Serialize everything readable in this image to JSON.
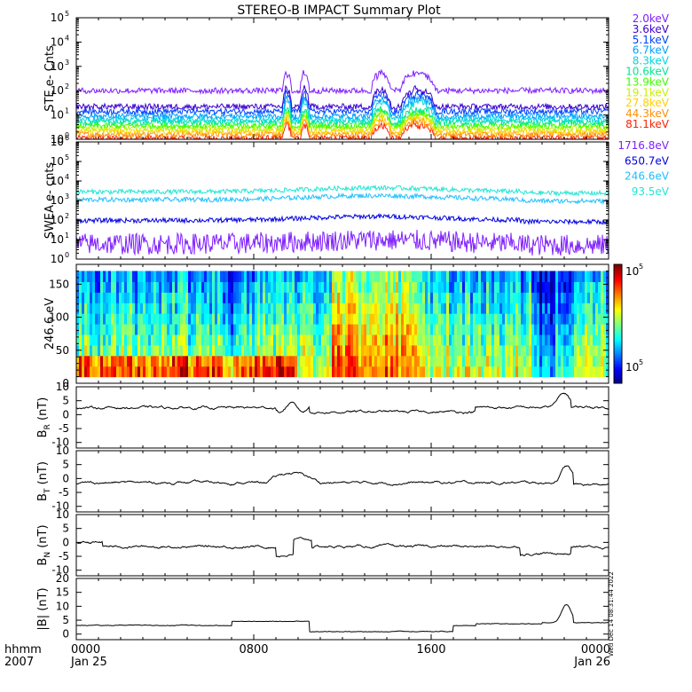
{
  "title": "STEREO-B IMPACT Summary Plot",
  "time_axis": {
    "row1_label": "hhmm",
    "row2_label": "2007",
    "ticks": [
      {
        "hour": 0,
        "label": "0000",
        "date": "Jan 25"
      },
      {
        "hour": 8,
        "label": "0800",
        "date": ""
      },
      {
        "hour": 16,
        "label": "1600",
        "date": ""
      },
      {
        "hour": 24,
        "label": "0000",
        "date": "Jan 26"
      }
    ],
    "range_hours": [
      0,
      24
    ]
  },
  "side_label": "Wed Dec 14 08:31:44 2022",
  "colors": {
    "purple": "#7f1fff",
    "blue": "#0000e0",
    "cyan": "#1fbfff",
    "teal": "#22e6d4",
    "black": "#000000"
  },
  "chart_data": [
    {
      "type": "line",
      "name": "ste",
      "ylabel": "STE e- Cnts",
      "yscale": "log",
      "ylim_exp": [
        0,
        5
      ],
      "ytick_exponents": [
        0,
        1,
        2,
        3,
        4,
        5
      ],
      "legend_position": "right",
      "series": [
        {
          "name": "2.0keV",
          "color": "#7f1fff",
          "base": 100
        },
        {
          "name": "3.6keV",
          "color": "#3a00d0",
          "base": 22
        },
        {
          "name": "5.1keV",
          "color": "#0040ff",
          "base": 14
        },
        {
          "name": "6.7keV",
          "color": "#00a0ff",
          "base": 9
        },
        {
          "name": "8.3keV",
          "color": "#00d8e0",
          "base": 6.5
        },
        {
          "name": "10.6keV",
          "color": "#00e890",
          "base": 5
        },
        {
          "name": "13.9keV",
          "color": "#40ff00",
          "base": 3.6
        },
        {
          "name": "19.1keV",
          "color": "#c8f000",
          "base": 2.8
        },
        {
          "name": "27.8keV",
          "color": "#ffd000",
          "base": 2.1
        },
        {
          "name": "44.3keV",
          "color": "#ff9000",
          "base": 1.6
        },
        {
          "name": "81.1keV",
          "color": "#ff2000",
          "base": 1.1
        }
      ],
      "enhancements_hours": [
        [
          9.3,
          9.7
        ],
        [
          10.1,
          10.5
        ],
        [
          13.3,
          14.2
        ],
        [
          14.6,
          16.2
        ]
      ]
    },
    {
      "type": "line",
      "name": "swea",
      "ylabel": "SWEA e- cnts",
      "yscale": "log",
      "ylim_exp": [
        0,
        6
      ],
      "ytick_exponents": [
        0,
        1,
        2,
        3,
        4,
        5,
        6
      ],
      "legend_position": "right",
      "series": [
        {
          "name": "1716.8eV",
          "color": "#7f1fff",
          "base": 6
        },
        {
          "name": "650.7eV",
          "color": "#0000e0",
          "base": 95
        },
        {
          "name": "246.6eV",
          "color": "#1fbfff",
          "base": 1100
        },
        {
          "name": "93.5eV",
          "color": "#22e6d4",
          "base": 2800
        }
      ]
    },
    {
      "type": "heatmap",
      "name": "pitch-angle",
      "ylabel": "246.6 eV",
      "ylim": [
        0,
        180
      ],
      "yticks": [
        0,
        50,
        100,
        150
      ],
      "data_range": [
        0,
        180
      ],
      "colorbar_labels": [
        "10",
        "5",
        "10",
        "5"
      ]
    },
    {
      "type": "line",
      "name": "br",
      "ylabel_main": "B",
      "ylabel_sub": "R",
      "ylabel_unit": "(nT)",
      "ylim": [
        -12,
        10
      ],
      "yticks": [
        -10,
        -5,
        0,
        5,
        10
      ],
      "level": 2.5,
      "series": [
        {
          "name": "",
          "color": "#000000"
        }
      ]
    },
    {
      "type": "line",
      "name": "bt",
      "ylabel_main": "B",
      "ylabel_sub": "T",
      "ylabel_unit": "(nT)",
      "ylim": [
        -12,
        10
      ],
      "yticks": [
        -10,
        -5,
        0,
        5,
        10
      ],
      "level": -1.5,
      "series": [
        {
          "name": "",
          "color": "#000000"
        }
      ]
    },
    {
      "type": "line",
      "name": "bn",
      "ylabel_main": "B",
      "ylabel_sub": "N",
      "ylabel_unit": "(nT)",
      "ylim": [
        -12,
        10
      ],
      "yticks": [
        -10,
        -5,
        0,
        5,
        10
      ],
      "level": -1.5,
      "series": [
        {
          "name": "",
          "color": "#000000"
        }
      ]
    },
    {
      "type": "line",
      "name": "btot",
      "ylabel_main": "|B|",
      "ylabel_sub": "",
      "ylabel_unit": "(nT)",
      "ylim": [
        -2,
        20
      ],
      "yticks": [
        0,
        5,
        10,
        15,
        20
      ],
      "level": 3,
      "series": [
        {
          "name": "",
          "color": "#000000"
        }
      ]
    }
  ]
}
